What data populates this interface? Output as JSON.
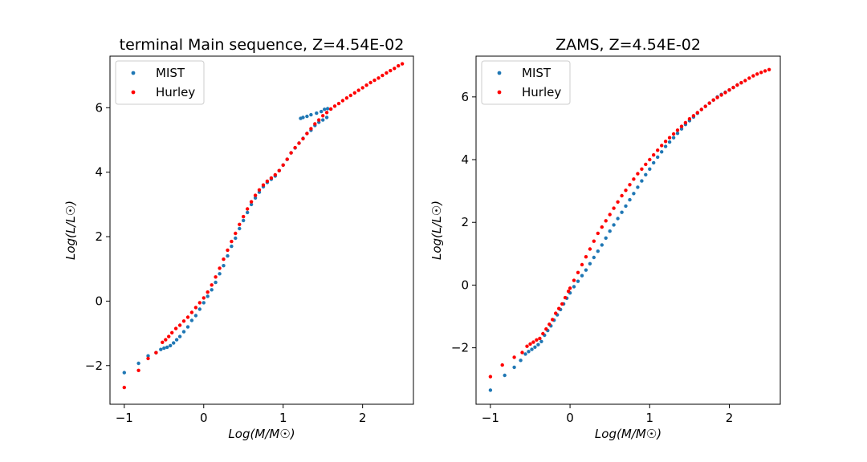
{
  "chart_data": [
    {
      "type": "scatter",
      "title": "terminal Main sequence, Z=4.54E-02",
      "xlabel": "Log(M/M☉)",
      "ylabel": "Log(L/L☉)",
      "xlim": [
        -1.18,
        2.64
      ],
      "ylim": [
        -3.2,
        7.6
      ],
      "xticks": [
        -1,
        0,
        1,
        2
      ],
      "yticks": [
        -2,
        0,
        2,
        4,
        6
      ],
      "legend_position": "upper-left",
      "series": [
        {
          "name": "MIST",
          "color": "#1f77b4",
          "points": [
            [
              -1.0,
              -2.22
            ],
            [
              -0.82,
              -1.93
            ],
            [
              -0.7,
              -1.7
            ],
            [
              -0.6,
              -1.6
            ],
            [
              -0.54,
              -1.5
            ],
            [
              -0.5,
              -1.46
            ],
            [
              -0.46,
              -1.43
            ],
            [
              -0.42,
              -1.38
            ],
            [
              -0.38,
              -1.3
            ],
            [
              -0.34,
              -1.2
            ],
            [
              -0.3,
              -1.1
            ],
            [
              -0.25,
              -0.95
            ],
            [
              -0.2,
              -0.8
            ],
            [
              -0.15,
              -0.6
            ],
            [
              -0.1,
              -0.45
            ],
            [
              -0.05,
              -0.25
            ],
            [
              0.0,
              -0.05
            ],
            [
              0.05,
              0.15
            ],
            [
              0.1,
              0.35
            ],
            [
              0.15,
              0.58
            ],
            [
              0.2,
              0.85
            ],
            [
              0.25,
              1.1
            ],
            [
              0.3,
              1.4
            ],
            [
              0.35,
              1.7
            ],
            [
              0.4,
              1.95
            ],
            [
              0.45,
              2.25
            ],
            [
              0.5,
              2.5
            ],
            [
              0.55,
              2.75
            ],
            [
              0.6,
              3.0
            ],
            [
              0.65,
              3.2
            ],
            [
              0.7,
              3.38
            ],
            [
              0.75,
              3.55
            ],
            [
              0.8,
              3.68
            ],
            [
              0.85,
              3.78
            ],
            [
              0.9,
              3.88
            ],
            [
              0.95,
              4.05
            ],
            [
              1.0,
              4.22
            ],
            [
              1.05,
              4.4
            ],
            [
              1.1,
              4.6
            ],
            [
              1.15,
              4.75
            ],
            [
              1.2,
              4.9
            ],
            [
              1.25,
              5.05
            ],
            [
              1.3,
              5.2
            ],
            [
              1.22,
              5.67
            ],
            [
              1.25,
              5.7
            ],
            [
              1.3,
              5.73
            ],
            [
              1.35,
              5.78
            ],
            [
              1.42,
              5.83
            ],
            [
              1.48,
              5.88
            ],
            [
              1.52,
              5.95
            ],
            [
              1.56,
              5.97
            ],
            [
              1.6,
              5.96
            ],
            [
              1.35,
              5.3
            ],
            [
              1.4,
              5.45
            ],
            [
              1.45,
              5.55
            ],
            [
              1.5,
              5.62
            ],
            [
              1.55,
              5.7
            ]
          ]
        },
        {
          "name": "Hurley",
          "color": "#ff0000",
          "points": [
            [
              -1.0,
              -2.68
            ],
            [
              -0.82,
              -2.15
            ],
            [
              -0.7,
              -1.78
            ],
            [
              -0.6,
              -1.6
            ],
            [
              -0.52,
              -1.28
            ],
            [
              -0.48,
              -1.2
            ],
            [
              -0.44,
              -1.1
            ],
            [
              -0.4,
              -0.98
            ],
            [
              -0.35,
              -0.85
            ],
            [
              -0.3,
              -0.75
            ],
            [
              -0.25,
              -0.62
            ],
            [
              -0.2,
              -0.5
            ],
            [
              -0.15,
              -0.35
            ],
            [
              -0.1,
              -0.2
            ],
            [
              -0.05,
              -0.05
            ],
            [
              0.0,
              0.1
            ],
            [
              0.05,
              0.28
            ],
            [
              0.1,
              0.5
            ],
            [
              0.15,
              0.75
            ],
            [
              0.2,
              1.02
            ],
            [
              0.25,
              1.3
            ],
            [
              0.3,
              1.58
            ],
            [
              0.35,
              1.85
            ],
            [
              0.4,
              2.1
            ],
            [
              0.45,
              2.38
            ],
            [
              0.5,
              2.62
            ],
            [
              0.55,
              2.86
            ],
            [
              0.6,
              3.08
            ],
            [
              0.65,
              3.28
            ],
            [
              0.7,
              3.45
            ],
            [
              0.75,
              3.6
            ],
            [
              0.8,
              3.72
            ],
            [
              0.85,
              3.82
            ],
            [
              0.9,
              3.92
            ],
            [
              0.95,
              4.05
            ],
            [
              1.0,
              4.22
            ],
            [
              1.05,
              4.4
            ],
            [
              1.1,
              4.6
            ],
            [
              1.15,
              4.76
            ],
            [
              1.2,
              4.9
            ],
            [
              1.25,
              5.04
            ],
            [
              1.3,
              5.2
            ],
            [
              1.35,
              5.35
            ],
            [
              1.4,
              5.5
            ],
            [
              1.45,
              5.62
            ],
            [
              1.5,
              5.75
            ],
            [
              1.55,
              5.85
            ],
            [
              1.6,
              5.96
            ],
            [
              1.65,
              6.05
            ],
            [
              1.7,
              6.13
            ],
            [
              1.75,
              6.22
            ],
            [
              1.8,
              6.3
            ],
            [
              1.85,
              6.38
            ],
            [
              1.9,
              6.46
            ],
            [
              1.95,
              6.54
            ],
            [
              2.0,
              6.62
            ],
            [
              2.05,
              6.7
            ],
            [
              2.1,
              6.78
            ],
            [
              2.15,
              6.85
            ],
            [
              2.2,
              6.92
            ],
            [
              2.25,
              7.0
            ],
            [
              2.3,
              7.08
            ],
            [
              2.35,
              7.15
            ],
            [
              2.4,
              7.22
            ],
            [
              2.45,
              7.3
            ],
            [
              2.5,
              7.36
            ]
          ]
        }
      ]
    },
    {
      "type": "scatter",
      "title": "ZAMS, Z=4.54E-02",
      "xlabel": "Log(M/M☉)",
      "ylabel": "Log(L/L☉)",
      "xlim": [
        -1.18,
        2.64
      ],
      "ylim": [
        -3.8,
        7.3
      ],
      "xticks": [
        -1,
        0,
        1,
        2
      ],
      "yticks": [
        -2,
        0,
        2,
        4,
        6
      ],
      "legend_position": "upper-left",
      "series": [
        {
          "name": "MIST",
          "color": "#1f77b4",
          "points": [
            [
              -1.0,
              -3.35
            ],
            [
              -0.82,
              -2.88
            ],
            [
              -0.7,
              -2.62
            ],
            [
              -0.62,
              -2.4
            ],
            [
              -0.56,
              -2.2
            ],
            [
              -0.52,
              -2.12
            ],
            [
              -0.48,
              -2.05
            ],
            [
              -0.44,
              -1.98
            ],
            [
              -0.4,
              -1.9
            ],
            [
              -0.36,
              -1.8
            ],
            [
              -0.32,
              -1.6
            ],
            [
              -0.28,
              -1.45
            ],
            [
              -0.24,
              -1.3
            ],
            [
              -0.2,
              -1.12
            ],
            [
              -0.16,
              -0.95
            ],
            [
              -0.12,
              -0.78
            ],
            [
              -0.08,
              -0.6
            ],
            [
              -0.04,
              -0.42
            ],
            [
              0.0,
              -0.25
            ],
            [
              0.05,
              -0.05
            ],
            [
              0.1,
              0.12
            ],
            [
              0.15,
              0.3
            ],
            [
              0.2,
              0.48
            ],
            [
              0.25,
              0.68
            ],
            [
              0.3,
              0.88
            ],
            [
              0.35,
              1.08
            ],
            [
              0.4,
              1.28
            ],
            [
              0.45,
              1.5
            ],
            [
              0.5,
              1.72
            ],
            [
              0.55,
              1.92
            ],
            [
              0.6,
              2.12
            ],
            [
              0.65,
              2.32
            ],
            [
              0.7,
              2.52
            ],
            [
              0.75,
              2.72
            ],
            [
              0.8,
              2.92
            ],
            [
              0.85,
              3.12
            ],
            [
              0.9,
              3.32
            ],
            [
              0.95,
              3.52
            ],
            [
              1.0,
              3.7
            ],
            [
              1.05,
              3.9
            ],
            [
              1.1,
              4.08
            ],
            [
              1.15,
              4.25
            ],
            [
              1.2,
              4.42
            ],
            [
              1.25,
              4.56
            ],
            [
              1.3,
              4.7
            ],
            [
              1.35,
              4.84
            ],
            [
              1.4,
              4.98
            ],
            [
              1.45,
              5.12
            ],
            [
              1.5,
              5.24
            ],
            [
              1.55,
              5.36
            ],
            [
              1.6,
              5.48
            ],
            [
              1.65,
              5.6
            ],
            [
              1.7,
              5.7
            ],
            [
              1.75,
              5.8
            ],
            [
              1.8,
              5.9
            ],
            [
              1.85,
              6.0
            ],
            [
              1.9,
              6.08
            ],
            [
              1.95,
              6.15
            ],
            [
              2.0,
              6.22
            ],
            [
              2.05,
              6.3
            ],
            [
              2.1,
              6.38
            ],
            [
              2.15,
              6.45
            ]
          ]
        },
        {
          "name": "Hurley",
          "color": "#ff0000",
          "points": [
            [
              -1.0,
              -2.92
            ],
            [
              -0.85,
              -2.55
            ],
            [
              -0.7,
              -2.3
            ],
            [
              -0.6,
              -2.15
            ],
            [
              -0.54,
              -1.95
            ],
            [
              -0.5,
              -1.88
            ],
            [
              -0.46,
              -1.82
            ],
            [
              -0.42,
              -1.75
            ],
            [
              -0.38,
              -1.7
            ],
            [
              -0.34,
              -1.55
            ],
            [
              -0.3,
              -1.4
            ],
            [
              -0.26,
              -1.25
            ],
            [
              -0.22,
              -1.1
            ],
            [
              -0.18,
              -0.9
            ],
            [
              -0.14,
              -0.75
            ],
            [
              -0.1,
              -0.6
            ],
            [
              -0.06,
              -0.4
            ],
            [
              -0.02,
              -0.2
            ],
            [
              0.0,
              -0.1
            ],
            [
              0.05,
              0.15
            ],
            [
              0.1,
              0.4
            ],
            [
              0.15,
              0.65
            ],
            [
              0.2,
              0.9
            ],
            [
              0.25,
              1.15
            ],
            [
              0.3,
              1.4
            ],
            [
              0.35,
              1.65
            ],
            [
              0.4,
              1.85
            ],
            [
              0.45,
              2.05
            ],
            [
              0.5,
              2.25
            ],
            [
              0.55,
              2.45
            ],
            [
              0.6,
              2.65
            ],
            [
              0.65,
              2.85
            ],
            [
              0.7,
              3.02
            ],
            [
              0.75,
              3.2
            ],
            [
              0.8,
              3.38
            ],
            [
              0.85,
              3.55
            ],
            [
              0.9,
              3.7
            ],
            [
              0.95,
              3.85
            ],
            [
              1.0,
              4.0
            ],
            [
              1.05,
              4.15
            ],
            [
              1.1,
              4.3
            ],
            [
              1.15,
              4.45
            ],
            [
              1.2,
              4.58
            ],
            [
              1.25,
              4.7
            ],
            [
              1.3,
              4.82
            ],
            [
              1.35,
              4.94
            ],
            [
              1.4,
              5.06
            ],
            [
              1.45,
              5.18
            ],
            [
              1.5,
              5.3
            ],
            [
              1.55,
              5.4
            ],
            [
              1.6,
              5.5
            ],
            [
              1.65,
              5.6
            ],
            [
              1.7,
              5.7
            ],
            [
              1.75,
              5.8
            ],
            [
              1.8,
              5.9
            ],
            [
              1.85,
              5.98
            ],
            [
              1.9,
              6.06
            ],
            [
              1.95,
              6.14
            ],
            [
              2.0,
              6.22
            ],
            [
              2.05,
              6.3
            ],
            [
              2.1,
              6.38
            ],
            [
              2.15,
              6.45
            ],
            [
              2.2,
              6.52
            ],
            [
              2.25,
              6.6
            ],
            [
              2.3,
              6.67
            ],
            [
              2.35,
              6.73
            ],
            [
              2.4,
              6.78
            ],
            [
              2.45,
              6.83
            ],
            [
              2.5,
              6.87
            ]
          ]
        }
      ]
    }
  ]
}
